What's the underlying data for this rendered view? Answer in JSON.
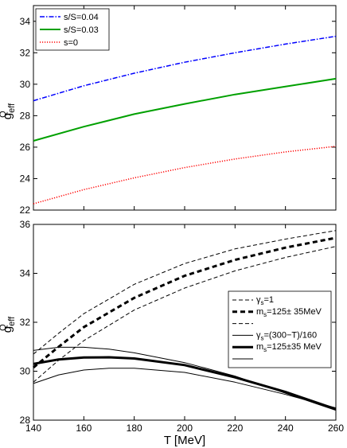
{
  "chart_data": [
    {
      "type": "line",
      "xlim": [
        140,
        260
      ],
      "ylim": [
        22,
        35
      ],
      "yticks": [
        "22",
        "24",
        "26",
        "28",
        "30",
        "32",
        "34"
      ],
      "xticks": [],
      "ylabel": {
        "main": "g",
        "sup": "Q",
        "sub": "eff"
      },
      "xlabel": "",
      "grid": false,
      "legend_position": "top-left",
      "series": [
        {
          "name": "s/S=0.04",
          "color": "#0000ff",
          "style": "dashdot",
          "width": 1.5,
          "x": [
            140,
            160,
            180,
            200,
            220,
            240,
            260
          ],
          "y": [
            28.95,
            29.9,
            30.7,
            31.4,
            32.0,
            32.55,
            33.05
          ]
        },
        {
          "name": "s/S=0.03",
          "color": "#00a000",
          "style": "solid",
          "width": 2,
          "x": [
            140,
            160,
            180,
            200,
            220,
            240,
            260
          ],
          "y": [
            26.4,
            27.3,
            28.1,
            28.75,
            29.35,
            29.85,
            30.35
          ]
        },
        {
          "name": "s=0",
          "color": "#ff0000",
          "style": "dotted",
          "width": 1.5,
          "x": [
            140,
            160,
            180,
            200,
            220,
            240,
            260
          ],
          "y": [
            22.4,
            23.3,
            24.05,
            24.7,
            25.25,
            25.7,
            26.05
          ]
        }
      ]
    },
    {
      "type": "line",
      "xlim": [
        140,
        260
      ],
      "ylim": [
        28,
        36
      ],
      "yticks": [
        "28",
        "30",
        "32",
        "34",
        "36"
      ],
      "xticks": [
        "140",
        "160",
        "180",
        "200",
        "220",
        "240",
        "260"
      ],
      "ylabel": {
        "main": "g",
        "sup": "Q",
        "sub": "eff"
      },
      "xlabel": "T [MeV]",
      "grid": false,
      "legend_position": "right",
      "legend": [
        {
          "label": "",
          "greek": "γ",
          "sub": "s",
          "suffix": "=1",
          "style": "dashed",
          "width": 1
        },
        {
          "label": "",
          "greek": "m",
          "sub": "s",
          "suffix": "=125± 35MeV",
          "style": "dashed",
          "width": 3
        },
        {
          "label": "",
          "greek": "",
          "sub": "",
          "suffix": "",
          "style": "dashed",
          "width": 1
        },
        {
          "label": "",
          "greek": "γ",
          "sub": "s",
          "suffix": "=(300−T)/160",
          "style": "solid",
          "width": 1
        },
        {
          "label": "",
          "greek": "m",
          "sub": "s",
          "suffix": "=125±35 MeV",
          "style": "solid",
          "width": 3
        },
        {
          "label": "",
          "greek": "",
          "sub": "",
          "suffix": "",
          "style": "solid",
          "width": 1
        }
      ],
      "series": [
        {
          "color": "#000000",
          "style": "dashed",
          "width": 1,
          "x": [
            140,
            150,
            160,
            180,
            200,
            220,
            240,
            260
          ],
          "y": [
            30.7,
            31.55,
            32.35,
            33.55,
            34.4,
            35.0,
            35.4,
            35.75
          ]
        },
        {
          "color": "#000000",
          "style": "dashed",
          "width": 3,
          "x": [
            140,
            150,
            160,
            180,
            200,
            220,
            240,
            260
          ],
          "y": [
            30.15,
            31.0,
            31.8,
            33.0,
            33.9,
            34.55,
            35.05,
            35.45
          ]
        },
        {
          "color": "#000000",
          "style": "dashed",
          "width": 1,
          "x": [
            140,
            150,
            160,
            180,
            200,
            220,
            240,
            260
          ],
          "y": [
            29.55,
            30.45,
            31.25,
            32.5,
            33.4,
            34.1,
            34.65,
            35.1
          ]
        },
        {
          "color": "#000000",
          "style": "solid",
          "width": 1,
          "x": [
            140,
            150,
            160,
            170,
            180,
            200,
            220,
            240,
            260
          ],
          "y": [
            30.85,
            30.98,
            30.98,
            30.9,
            30.75,
            30.35,
            29.8,
            29.1,
            28.4
          ]
        },
        {
          "color": "#000000",
          "style": "solid",
          "width": 3,
          "x": [
            140,
            150,
            160,
            170,
            180,
            200,
            220,
            240,
            260
          ],
          "y": [
            30.3,
            30.48,
            30.56,
            30.57,
            30.52,
            30.25,
            29.75,
            29.15,
            28.45
          ]
        },
        {
          "color": "#000000",
          "style": "solid",
          "width": 1,
          "x": [
            140,
            150,
            160,
            170,
            180,
            200,
            220,
            240,
            260
          ],
          "y": [
            29.5,
            29.85,
            30.05,
            30.12,
            30.12,
            29.95,
            29.55,
            29.05,
            28.5
          ]
        }
      ]
    }
  ]
}
